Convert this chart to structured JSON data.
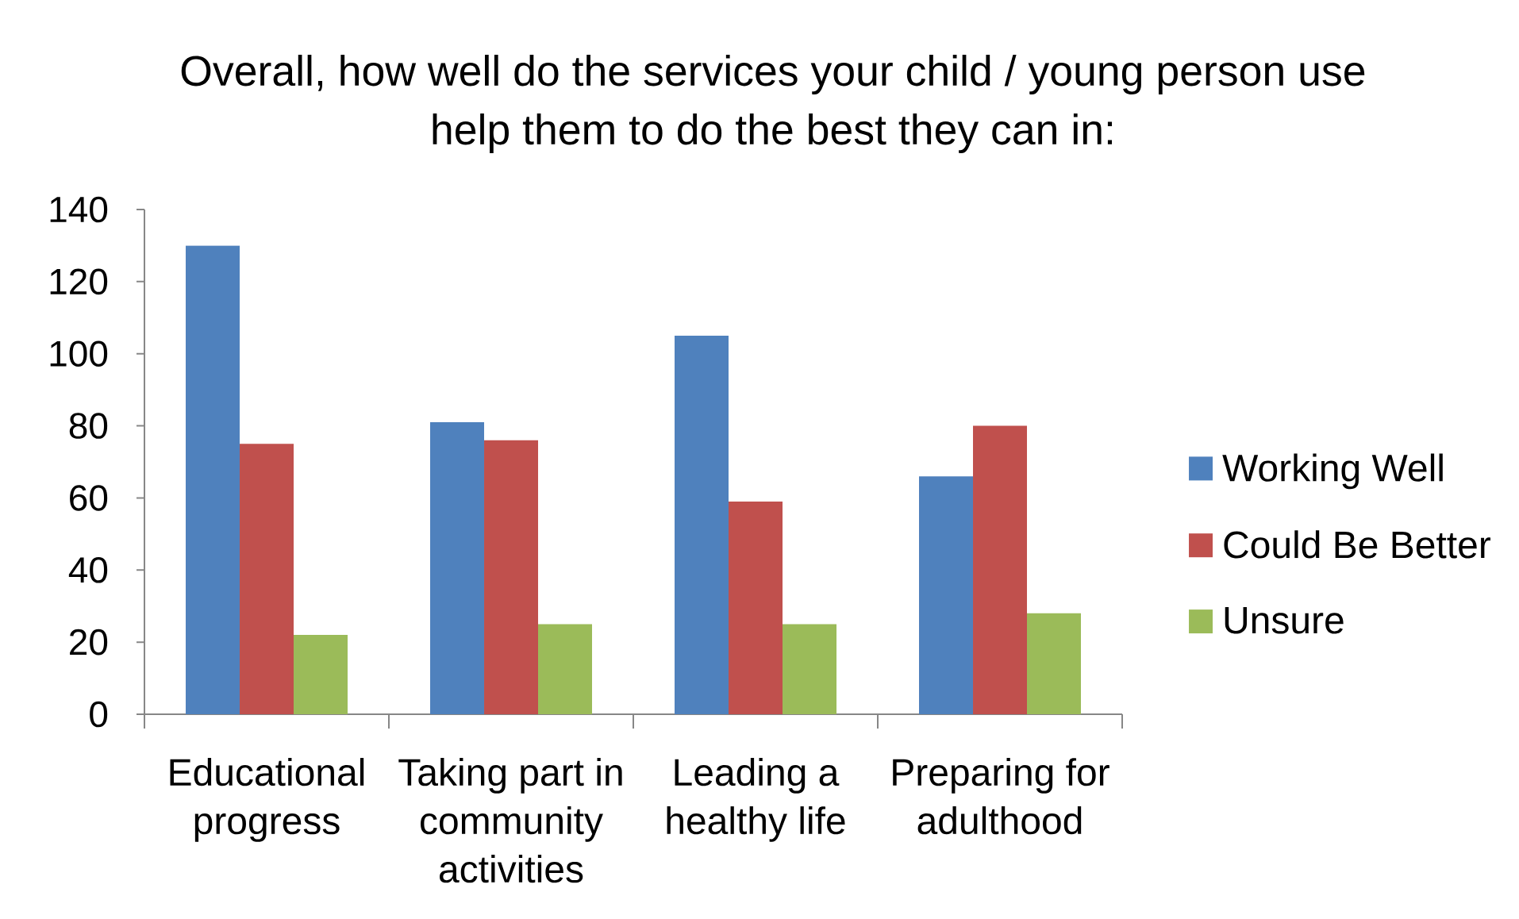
{
  "chart_data": {
    "type": "bar",
    "title": "Overall, how well do the services your child / young person use help them to do the best they can in:",
    "categories": [
      "Educational progress",
      "Taking part in community activities",
      "Leading a healthy life",
      "Preparing for adulthood"
    ],
    "series": [
      {
        "name": "Working Well",
        "color": "#4f81bd",
        "values": [
          130,
          81,
          105,
          66
        ]
      },
      {
        "name": "Could Be Better",
        "color": "#c0504d",
        "values": [
          75,
          76,
          59,
          80
        ]
      },
      {
        "name": "Unsure",
        "color": "#9bbb59",
        "values": [
          22,
          25,
          25,
          28
        ]
      }
    ],
    "ylim": [
      0,
      140
    ],
    "yticks": [
      0,
      20,
      40,
      60,
      80,
      100,
      120,
      140
    ],
    "legend": "right"
  }
}
